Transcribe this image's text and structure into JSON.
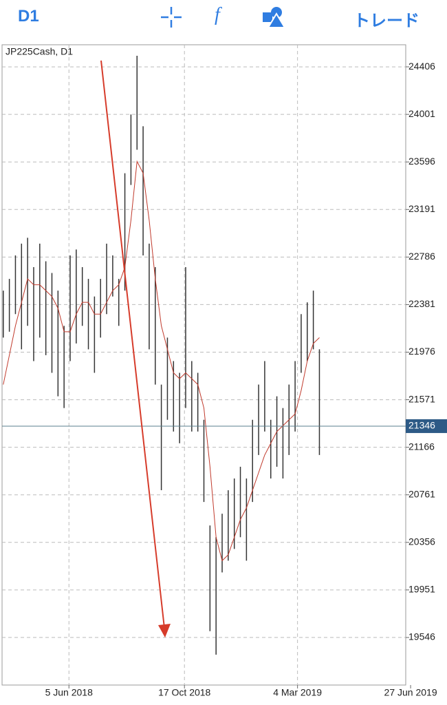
{
  "toolbar": {
    "timeframe": "D1",
    "function_icon": "f",
    "trade": "トレード"
  },
  "chart_data": {
    "type": "ohlc",
    "title": "JP225Cash, D1",
    "x": [
      1,
      6,
      11,
      16,
      21,
      26,
      31,
      36,
      41,
      46,
      51,
      56,
      61,
      66,
      71,
      76,
      81,
      86,
      91,
      96,
      101,
      106,
      111,
      116,
      121,
      126,
      131,
      136,
      141,
      146,
      151,
      156,
      161,
      166,
      171,
      176,
      181,
      186,
      191,
      196,
      201,
      206,
      211,
      216,
      221,
      226,
      231,
      236,
      241,
      246,
      251,
      256,
      261
    ],
    "series": [
      {
        "name": "high",
        "color": "#333333",
        "values": [
          22500,
          22600,
          22800,
          22900,
          22950,
          22700,
          22900,
          22750,
          22650,
          22500,
          22200,
          22800,
          22850,
          22700,
          22600,
          22450,
          22600,
          22900,
          22800,
          22600,
          23500,
          24000,
          24500,
          23900,
          22900,
          22700,
          21700,
          22100,
          21900,
          21800,
          22700,
          21900,
          21800,
          21400,
          20500,
          20400,
          20600,
          20800,
          20900,
          21000,
          20900,
          21400,
          21700,
          21900,
          21400,
          21600,
          21500,
          21700,
          21900,
          22300,
          22400,
          22500,
          22000
        ]
      },
      {
        "name": "low",
        "color": "#333333",
        "values": [
          22100,
          22150,
          22300,
          22000,
          22200,
          21900,
          22100,
          21950,
          21800,
          21600,
          21500,
          21900,
          22050,
          22200,
          22000,
          21800,
          22100,
          22300,
          22450,
          22200,
          22500,
          23400,
          23700,
          22800,
          22000,
          21700,
          20800,
          21400,
          21300,
          21200,
          21500,
          21300,
          21300,
          20700,
          19600,
          19400,
          20100,
          20200,
          20300,
          20400,
          20200,
          20700,
          21100,
          21300,
          20900,
          21000,
          20900,
          21100,
          21300,
          21800,
          21900,
          22000,
          21100
        ]
      },
      {
        "name": "ma",
        "color": "#c0392b",
        "values": [
          21700,
          21950,
          22200,
          22400,
          22600,
          22550,
          22550,
          22500,
          22450,
          22350,
          22150,
          22150,
          22300,
          22400,
          22400,
          22300,
          22300,
          22400,
          22500,
          22550,
          22700,
          23100,
          23600,
          23500,
          23100,
          22600,
          22200,
          22000,
          21800,
          21750,
          21800,
          21750,
          21700,
          21500,
          21000,
          20400,
          20200,
          20250,
          20400,
          20550,
          20650,
          20800,
          20950,
          21100,
          21200,
          21300,
          21350,
          21400,
          21450,
          21650,
          21900,
          22050,
          22100
        ]
      }
    ],
    "current_price": 21346,
    "xlim": [
      0,
      332
    ],
    "xticks": [
      {
        "value": 55,
        "label": "5 Jun 2018"
      },
      {
        "value": 150,
        "label": "17 Oct 2018"
      },
      {
        "value": 243,
        "label": "4 Mar 2019"
      },
      {
        "value": 336,
        "label": "27 Jun 2019"
      }
    ],
    "ylim": [
      19141,
      24594
    ],
    "yticks": [
      19546,
      19951,
      20356,
      20761,
      21166,
      21571,
      21976,
      22381,
      22786,
      23191,
      23596,
      24001,
      24406
    ],
    "grid": true
  }
}
